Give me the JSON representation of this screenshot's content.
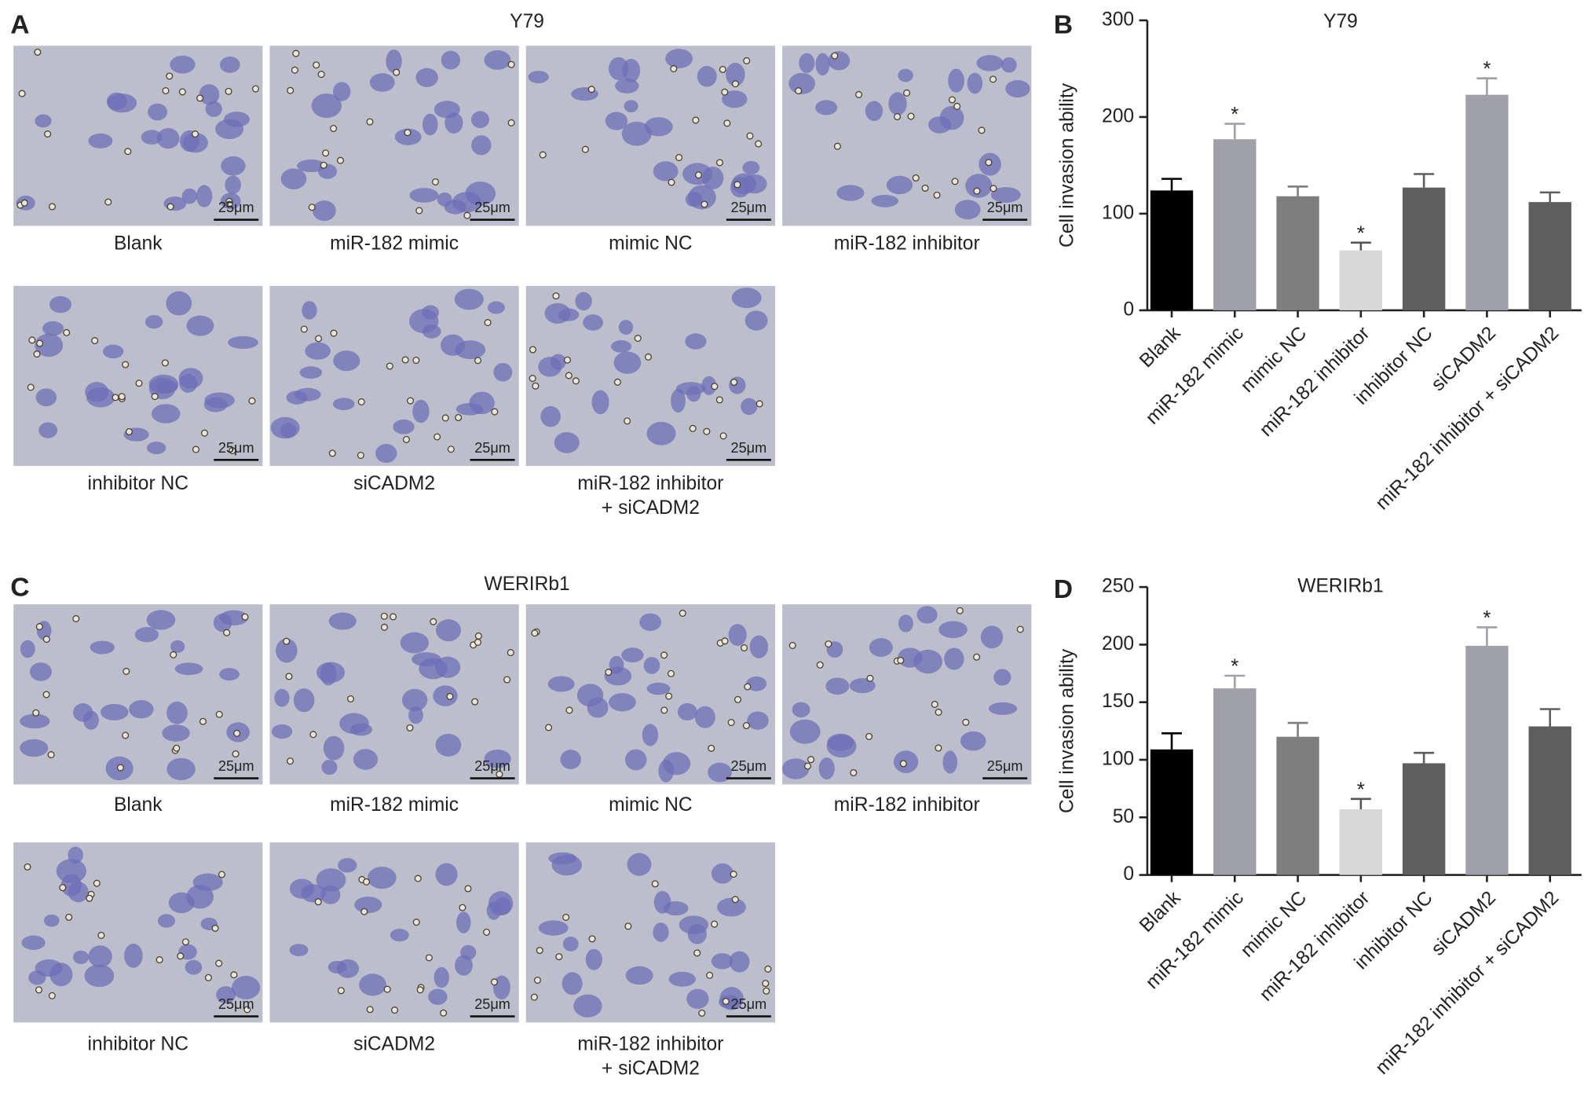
{
  "panels": [
    {
      "letter": "A",
      "title": "Y79",
      "scale_bar": "25μm",
      "images": [
        "Blank",
        "miR-182 mimic",
        "mimic NC",
        "miR-182 inhibitor",
        "inhibitor NC",
        "siCADM2",
        [
          "miR-182 inhibitor",
          "+ siCADM2"
        ]
      ]
    },
    {
      "letter": "C",
      "title": "WERIRb1",
      "scale_bar": "25μm",
      "images": [
        "Blank",
        "miR-182 mimic",
        "mimic NC",
        "miR-182 inhibitor",
        "inhibitor NC",
        "siCADM2",
        [
          "miR-182 inhibitor",
          "+ siCADM2"
        ]
      ]
    }
  ],
  "chart_data": [
    {
      "type": "bar",
      "panel_label": "B",
      "title": "Y79",
      "y_label": "Cell invasion ability",
      "categories": [
        "Blank",
        "miR-182 mimic",
        "mimic NC",
        "miR-182 inhibitor",
        "inhibitor NC",
        "siCADM2",
        "miR-182 inhibitor + siCADM2"
      ],
      "values": [
        124,
        177,
        118,
        62,
        127,
        223,
        112
      ],
      "errors": [
        12,
        16,
        10,
        8,
        14,
        17,
        10
      ],
      "annotations": [
        null,
        "*",
        null,
        "*",
        null,
        "*",
        null
      ],
      "colors": [
        "#000000",
        "#a0a0a8",
        "#7e7e7e",
        "#d8d8d8",
        "#5e5e5e",
        "#a0a0a8",
        "#5e5e5e"
      ],
      "ylim": [
        0,
        300
      ],
      "yticks": [
        0,
        100,
        200,
        300
      ]
    },
    {
      "type": "bar",
      "panel_label": "D",
      "title": "WERIRb1",
      "y_label": "Cell invasion ability",
      "categories": [
        "Blank",
        "miR-182 mimic",
        "mimic NC",
        "miR-182 inhibitor",
        "inhibitor NC",
        "siCADM2",
        "miR-182 inhibitor + siCADM2"
      ],
      "values": [
        109,
        162,
        120,
        57,
        97,
        199,
        129
      ],
      "errors": [
        14,
        11,
        12,
        9,
        9,
        16,
        15
      ],
      "annotations": [
        null,
        "*",
        null,
        "*",
        null,
        "*",
        null
      ],
      "colors": [
        "#000000",
        "#a0a0a8",
        "#7e7e7e",
        "#d8d8d8",
        "#5e5e5e",
        "#a0a0a8",
        "#5e5e5e"
      ],
      "ylim": [
        0,
        250
      ],
      "yticks": [
        0,
        50,
        100,
        150,
        200,
        250
      ]
    }
  ]
}
